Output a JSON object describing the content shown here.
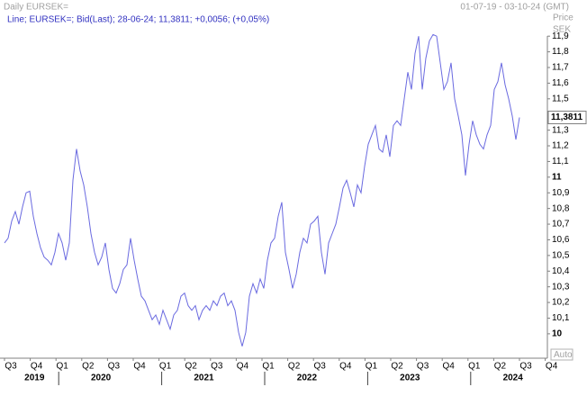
{
  "chart_data": {
    "type": "line",
    "title": "Daily EURSEK=",
    "date_range": "01-07-19 - 03-10-24 (GMT)",
    "legend_text": "Line; EURSEK=; Bid(Last); 28-06-24; 11,3811; +0,0056; (+0,05%)",
    "y_axis_title": "Price",
    "y_axis_unit": "SEK",
    "scale_mode": "Auto",
    "last_label": "11,3811",
    "ylim": [
      9.85,
      11.97
    ],
    "yticks": [
      {
        "value": 10,
        "label": "10"
      },
      {
        "value": 10.1,
        "label": "10,1"
      },
      {
        "value": 10.2,
        "label": "10,2"
      },
      {
        "value": 10.3,
        "label": "10,3"
      },
      {
        "value": 10.4,
        "label": "10,4"
      },
      {
        "value": 10.5,
        "label": "10,5"
      },
      {
        "value": 10.6,
        "label": "10,6"
      },
      {
        "value": 10.7,
        "label": "10,7"
      },
      {
        "value": 10.8,
        "label": "10,8"
      },
      {
        "value": 10.9,
        "label": "10,9"
      },
      {
        "value": 11,
        "label": "11"
      },
      {
        "value": 11.1,
        "label": "11,1"
      },
      {
        "value": 11.2,
        "label": "11,2"
      },
      {
        "value": 11.3,
        "label": "11,3"
      },
      {
        "value": 11.5,
        "label": "11,5"
      },
      {
        "value": 11.6,
        "label": "11,6"
      },
      {
        "value": 11.7,
        "label": "11,7"
      },
      {
        "value": 11.8,
        "label": "11,8"
      },
      {
        "value": 11.9,
        "label": "11,9"
      }
    ],
    "quarters": [
      "Q3",
      "Q4",
      "Q1",
      "Q2",
      "Q3",
      "Q4",
      "Q1",
      "Q2",
      "Q3",
      "Q4",
      "Q1",
      "Q2",
      "Q3",
      "Q4",
      "Q1",
      "Q2",
      "Q3",
      "Q4",
      "Q1",
      "Q2",
      "Q3",
      "Q4"
    ],
    "years": [
      "2019",
      "2020",
      "2021",
      "2022",
      "2023",
      "2024"
    ],
    "series": [
      {
        "name": "EURSEK=",
        "color": "#6a6ae0",
        "values": [
          10.58,
          10.61,
          10.72,
          10.78,
          10.7,
          10.81,
          10.9,
          10.91,
          10.75,
          10.64,
          10.55,
          10.49,
          10.47,
          10.44,
          10.52,
          10.64,
          10.58,
          10.47,
          10.58,
          10.98,
          11.18,
          11.04,
          10.95,
          10.81,
          10.64,
          10.52,
          10.44,
          10.49,
          10.58,
          10.41,
          10.29,
          10.26,
          10.32,
          10.41,
          10.44,
          10.61,
          10.47,
          10.35,
          10.24,
          10.21,
          10.15,
          10.09,
          10.12,
          10.06,
          10.15,
          10.09,
          10.03,
          10.12,
          10.15,
          10.24,
          10.26,
          10.18,
          10.15,
          10.18,
          10.09,
          10.15,
          10.18,
          10.15,
          10.21,
          10.18,
          10.24,
          10.26,
          10.18,
          10.21,
          10.15,
          10.01,
          9.92,
          10.01,
          10.24,
          10.32,
          10.26,
          10.35,
          10.29,
          10.47,
          10.58,
          10.61,
          10.75,
          10.84,
          10.52,
          10.41,
          10.29,
          10.38,
          10.52,
          10.61,
          10.58,
          10.7,
          10.72,
          10.75,
          10.52,
          10.38,
          10.58,
          10.64,
          10.7,
          10.81,
          10.93,
          10.98,
          10.9,
          10.81,
          10.95,
          10.9,
          11.07,
          11.21,
          11.27,
          11.33,
          11.18,
          11.16,
          11.27,
          11.13,
          11.33,
          11.36,
          11.33,
          11.5,
          11.67,
          11.56,
          11.79,
          11.9,
          11.56,
          11.76,
          11.87,
          11.91,
          11.9,
          11.73,
          11.56,
          11.61,
          11.73,
          11.5,
          11.39,
          11.27,
          11.01,
          11.21,
          11.36,
          11.27,
          11.21,
          11.18,
          11.27,
          11.33,
          11.56,
          11.61,
          11.73,
          11.59,
          11.5,
          11.39,
          11.24,
          11.3811
        ]
      }
    ]
  }
}
